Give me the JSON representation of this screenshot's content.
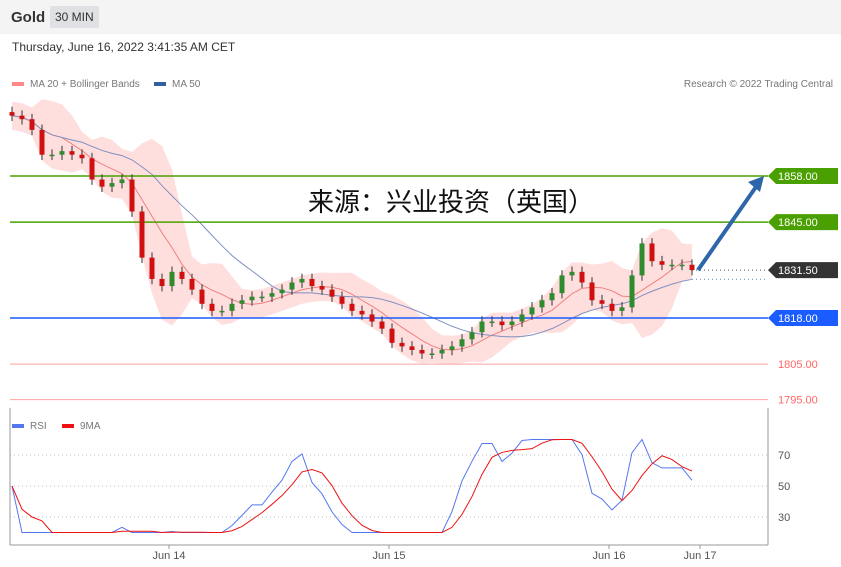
{
  "header": {
    "symbol": "Gold",
    "timeframe": "30 MIN"
  },
  "date": "Thursday, June 16, 2022 3:41:35 AM CET",
  "legend": {
    "ma20": "MA 20 + Bollinger Bands",
    "ma50": "MA 50",
    "rsi": "RSI",
    "ma9": "9MA",
    "credit": "Research © 2022 Trading Central"
  },
  "watermark": "来源：兴业投资（英国）",
  "colors": {
    "ma20": "#f08080",
    "ma50": "#3060a0",
    "resistance": "#4aa000",
    "support": "#1a5cff",
    "lower_support": "#ff6666",
    "last": "#333333",
    "up": "#2e8b2e",
    "down": "#d01010",
    "rsi": "#5577ee",
    "ma9": "#ee1111"
  },
  "chart_data": {
    "type": "candlestick",
    "xticks": [
      "Jun 14",
      "Jun 15",
      "Jun 16",
      "Jun 17"
    ],
    "ylim": [
      1790,
      1880
    ],
    "closes": [
      1875,
      1874,
      1871,
      1864,
      1864,
      1865,
      1864,
      1863,
      1857,
      1855,
      1856,
      1857,
      1848,
      1835,
      1829,
      1827,
      1831,
      1829,
      1826,
      1822,
      1820,
      1820,
      1822,
      1823,
      1824,
      1824,
      1825,
      1826,
      1828,
      1829,
      1827,
      1826,
      1824,
      1822,
      1820,
      1819,
      1817,
      1815,
      1811,
      1810,
      1809,
      1808,
      1808,
      1809,
      1810,
      1812,
      1814,
      1817,
      1817,
      1816,
      1817,
      1819,
      1821,
      1823,
      1825,
      1830,
      1831,
      1828,
      1823,
      1822,
      1820,
      1821,
      1830,
      1839,
      1834,
      1833,
      1833,
      1833,
      1831.5
    ],
    "levels": [
      {
        "label": "1858.00",
        "value": 1858,
        "kind": "resistance"
      },
      {
        "label": "1845.00",
        "value": 1845,
        "kind": "resistance"
      },
      {
        "label": "1831.50",
        "value": 1831.5,
        "kind": "last"
      },
      {
        "label": "1818.00",
        "value": 1818,
        "kind": "support"
      },
      {
        "label": "1805.00",
        "value": 1805,
        "kind": "lower_support"
      },
      {
        "label": "1795.00",
        "value": 1795,
        "kind": "lower_support"
      }
    ],
    "target": 1858,
    "rsi_ticks": [
      "70",
      "50",
      "30"
    ],
    "rsi_values": [
      70,
      50,
      30
    ]
  }
}
